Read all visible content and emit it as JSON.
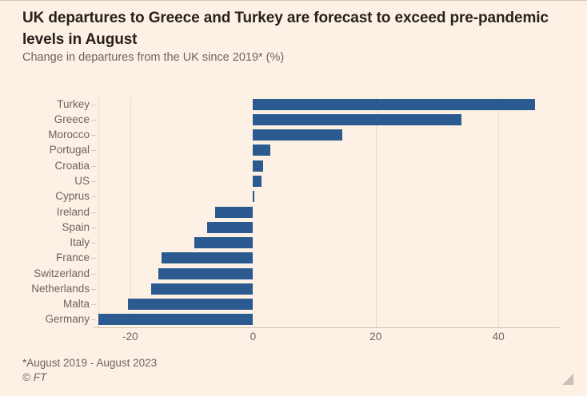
{
  "chart_data": {
    "type": "bar",
    "orientation": "horizontal",
    "title": "UK departures to Greece and Turkey are forecast to exceed pre-pandemic levels in August",
    "subtitle": "Change in departures from the UK since 2019* (%)",
    "categories": [
      "Turkey",
      "Greece",
      "Morocco",
      "Portugal",
      "Croatia",
      "US",
      "Cyprus",
      "Ireland",
      "Spain",
      "Italy",
      "France",
      "Switzerland",
      "Netherlands",
      "Malta",
      "Germany"
    ],
    "values": [
      46,
      34,
      14.6,
      2.8,
      1.7,
      1.4,
      0.2,
      -6.2,
      -7.5,
      -9.6,
      -14.9,
      -15.4,
      -16.6,
      -20.4,
      -25.2
    ],
    "xlabel": "",
    "ylabel": "",
    "xlim": [
      -25.2,
      50
    ],
    "x_ticks": [
      -20,
      0,
      20,
      40
    ],
    "x_tick_labels": [
      "-20",
      "0",
      "20",
      "40"
    ],
    "grid": "vertical",
    "legend": false
  },
  "footer": {
    "note": "*August 2019 - August 2023",
    "copyright": "© FT"
  },
  "colors": {
    "background": "#fdf1e5",
    "bar": "#2a5a8f",
    "title_text": "#26211d",
    "body_text": "#6b655f",
    "gridline": "#e9dccc",
    "axis_line": "#cfc4b5",
    "resize_handle": "#c9c0b6"
  }
}
